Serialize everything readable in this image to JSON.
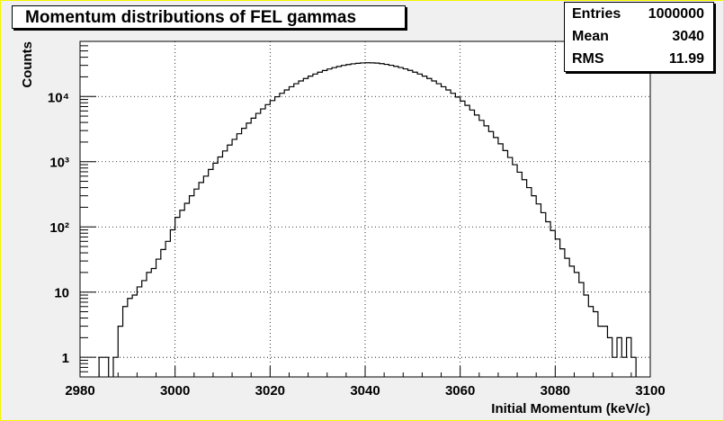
{
  "chart_data": {
    "type": "histogram",
    "title": "Momentum distributions of FEL gammas",
    "xlabel": "Initial Momentum (keV/c)",
    "ylabel": "Counts",
    "xlim": [
      2980,
      3100
    ],
    "ylim": [
      0.5,
      70000
    ],
    "yscale": "log",
    "grid": true,
    "x_ticks": [
      2980,
      3000,
      3020,
      3040,
      3060,
      3080,
      3100
    ],
    "y_tick_labels": [
      "1",
      "10",
      "10²",
      "10³",
      "10⁴"
    ],
    "y_tick_values": [
      1,
      10,
      100,
      1000,
      10000
    ],
    "bin_width": 1,
    "bins": [
      {
        "x": 2984,
        "y": 1
      },
      {
        "x": 2985,
        "y": 1
      },
      {
        "x": 2987,
        "y": 1
      },
      {
        "x": 2988,
        "y": 3
      },
      {
        "x": 2989,
        "y": 6
      },
      {
        "x": 2990,
        "y": 8
      },
      {
        "x": 2991,
        "y": 9
      },
      {
        "x": 2992,
        "y": 12
      },
      {
        "x": 2993,
        "y": 15
      },
      {
        "x": 2994,
        "y": 20
      },
      {
        "x": 2995,
        "y": 23
      },
      {
        "x": 2996,
        "y": 32
      },
      {
        "x": 2997,
        "y": 45
      },
      {
        "x": 2998,
        "y": 60
      },
      {
        "x": 2999,
        "y": 90
      },
      {
        "x": 3000,
        "y": 140
      },
      {
        "x": 3001,
        "y": 180
      },
      {
        "x": 3002,
        "y": 230
      },
      {
        "x": 3003,
        "y": 300
      },
      {
        "x": 3004,
        "y": 380
      },
      {
        "x": 3005,
        "y": 480
      },
      {
        "x": 3006,
        "y": 600
      },
      {
        "x": 3007,
        "y": 760
      },
      {
        "x": 3008,
        "y": 950
      },
      {
        "x": 3009,
        "y": 1180
      },
      {
        "x": 3010,
        "y": 1460
      },
      {
        "x": 3011,
        "y": 1800
      },
      {
        "x": 3012,
        "y": 2200
      },
      {
        "x": 3013,
        "y": 2680
      },
      {
        "x": 3014,
        "y": 3250
      },
      {
        "x": 3015,
        "y": 3900
      },
      {
        "x": 3016,
        "y": 4650
      },
      {
        "x": 3017,
        "y": 5500
      },
      {
        "x": 3018,
        "y": 6450
      },
      {
        "x": 3019,
        "y": 7500
      },
      {
        "x": 3020,
        "y": 8650
      },
      {
        "x": 3021,
        "y": 9900
      },
      {
        "x": 3022,
        "y": 11200
      },
      {
        "x": 3023,
        "y": 12600
      },
      {
        "x": 3024,
        "y": 14100
      },
      {
        "x": 3025,
        "y": 15700
      },
      {
        "x": 3026,
        "y": 17300
      },
      {
        "x": 3027,
        "y": 18900
      },
      {
        "x": 3028,
        "y": 20500
      },
      {
        "x": 3029,
        "y": 22100
      },
      {
        "x": 3030,
        "y": 23600
      },
      {
        "x": 3031,
        "y": 25000
      },
      {
        "x": 3032,
        "y": 26400
      },
      {
        "x": 3033,
        "y": 27700
      },
      {
        "x": 3034,
        "y": 28900
      },
      {
        "x": 3035,
        "y": 30000
      },
      {
        "x": 3036,
        "y": 30900
      },
      {
        "x": 3037,
        "y": 31700
      },
      {
        "x": 3038,
        "y": 32300
      },
      {
        "x": 3039,
        "y": 32700
      },
      {
        "x": 3040,
        "y": 32900
      },
      {
        "x": 3041,
        "y": 32800
      },
      {
        "x": 3042,
        "y": 32500
      },
      {
        "x": 3043,
        "y": 31900
      },
      {
        "x": 3044,
        "y": 31100
      },
      {
        "x": 3045,
        "y": 30100
      },
      {
        "x": 3046,
        "y": 29000
      },
      {
        "x": 3047,
        "y": 27800
      },
      {
        "x": 3048,
        "y": 26500
      },
      {
        "x": 3049,
        "y": 25100
      },
      {
        "x": 3050,
        "y": 23600
      },
      {
        "x": 3051,
        "y": 22100
      },
      {
        "x": 3052,
        "y": 20500
      },
      {
        "x": 3053,
        "y": 18900
      },
      {
        "x": 3054,
        "y": 17300
      },
      {
        "x": 3055,
        "y": 15700
      },
      {
        "x": 3056,
        "y": 14100
      },
      {
        "x": 3057,
        "y": 12600
      },
      {
        "x": 3058,
        "y": 11200
      },
      {
        "x": 3059,
        "y": 9800
      },
      {
        "x": 3060,
        "y": 8500
      },
      {
        "x": 3061,
        "y": 7300
      },
      {
        "x": 3062,
        "y": 6200
      },
      {
        "x": 3063,
        "y": 5200
      },
      {
        "x": 3064,
        "y": 4300
      },
      {
        "x": 3065,
        "y": 3550
      },
      {
        "x": 3066,
        "y": 2900
      },
      {
        "x": 3067,
        "y": 2350
      },
      {
        "x": 3068,
        "y": 1880
      },
      {
        "x": 3069,
        "y": 1480
      },
      {
        "x": 3070,
        "y": 1160
      },
      {
        "x": 3071,
        "y": 900
      },
      {
        "x": 3072,
        "y": 690
      },
      {
        "x": 3073,
        "y": 530
      },
      {
        "x": 3074,
        "y": 400
      },
      {
        "x": 3075,
        "y": 300
      },
      {
        "x": 3076,
        "y": 225
      },
      {
        "x": 3077,
        "y": 165
      },
      {
        "x": 3078,
        "y": 120
      },
      {
        "x": 3079,
        "y": 88
      },
      {
        "x": 3080,
        "y": 65
      },
      {
        "x": 3081,
        "y": 46
      },
      {
        "x": 3082,
        "y": 33
      },
      {
        "x": 3083,
        "y": 25
      },
      {
        "x": 3084,
        "y": 20
      },
      {
        "x": 3085,
        "y": 14
      },
      {
        "x": 3086,
        "y": 9
      },
      {
        "x": 3087,
        "y": 6
      },
      {
        "x": 3088,
        "y": 5
      },
      {
        "x": 3089,
        "y": 3
      },
      {
        "x": 3090,
        "y": 3
      },
      {
        "x": 3091,
        "y": 2
      },
      {
        "x": 3092,
        "y": 1
      },
      {
        "x": 3093,
        "y": 2
      },
      {
        "x": 3094,
        "y": 1
      },
      {
        "x": 3095,
        "y": 2
      },
      {
        "x": 3096,
        "y": 1
      }
    ]
  },
  "stats": {
    "rows": [
      {
        "label": "Entries",
        "value": "1000000"
      },
      {
        "label": "Mean",
        "value": "3040"
      },
      {
        "label": "RMS",
        "value": "11.99"
      }
    ]
  },
  "colors": {
    "histogram_line": "#000000",
    "grid": "#000000",
    "frame_bg": "#f0f0f0",
    "pad_bg": "#ffffff"
  }
}
